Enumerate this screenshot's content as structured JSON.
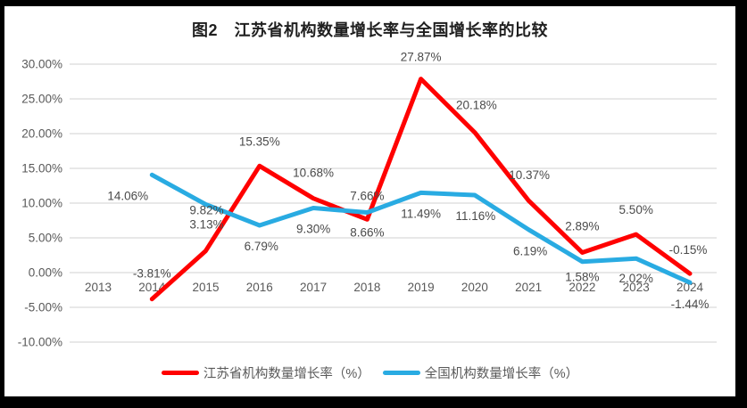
{
  "chart_data": {
    "type": "line",
    "title": "图2　江苏省机构数量增长率与全国增长率的比较",
    "categories": [
      "2013",
      "2014",
      "2015",
      "2016",
      "2017",
      "2018",
      "2019",
      "2020",
      "2021",
      "2022",
      "2023",
      "2024"
    ],
    "y_axis": {
      "min": -10,
      "max": 30,
      "step": 5,
      "tick_labels": [
        "30.00%",
        "25.00%",
        "20.00%",
        "15.00%",
        "10.00%",
        "5.00%",
        "0.00%",
        "-5.00%",
        "-10.00%"
      ]
    },
    "grid": "horizontal",
    "legend_position": "bottom",
    "series": [
      {
        "id": "jiangsu-line",
        "name": "江苏省机构数量增长率（%）",
        "color": "#FF0000",
        "start_category": "2014",
        "values": [
          -3.81,
          3.13,
          15.35,
          10.68,
          7.66,
          27.87,
          20.18,
          10.37,
          2.89,
          5.5,
          -0.15
        ],
        "data_labels": [
          "-3.81%",
          "3.13%",
          "15.35%",
          "10.68%",
          "7.66%",
          "27.87%",
          "20.18%",
          "10.37%",
          "2.89%",
          "5.50%",
          "-0.15%"
        ],
        "label_offsets": [
          [
            0,
            -24
          ],
          [
            1,
            -25
          ],
          [
            0,
            -23
          ],
          [
            0,
            -24
          ],
          [
            0,
            -22
          ],
          [
            0,
            -20
          ],
          [
            2,
            -26
          ],
          [
            1,
            -24
          ],
          [
            0,
            -25
          ],
          [
            0,
            -23
          ],
          [
            -2,
            -22
          ]
        ]
      },
      {
        "id": "national-line",
        "name": "全国机构数量增长率（%）",
        "color": "#29ABE2",
        "start_category": "2014",
        "values": [
          14.06,
          9.82,
          6.79,
          9.3,
          8.66,
          11.49,
          11.16,
          6.19,
          1.58,
          2.02,
          -1.44
        ],
        "data_labels": [
          "14.06%",
          "9.82%",
          "6.79%",
          "9.30%",
          "8.66%",
          "11.49%",
          "11.16%",
          "6.19%",
          "1.58%",
          "2.02%",
          "-1.44%"
        ],
        "label_offsets": [
          [
            -27,
            28
          ],
          [
            1,
            11
          ],
          [
            2,
            28
          ],
          [
            0,
            28
          ],
          [
            0,
            27
          ],
          [
            0,
            28
          ],
          [
            1,
            28
          ],
          [
            2,
            29
          ],
          [
            0,
            22
          ],
          [
            0,
            27
          ],
          [
            0,
            29
          ]
        ]
      }
    ]
  },
  "colors": {
    "grid": "#D9D9D9",
    "axis_text": "#595959",
    "title_text": "#1F1F1F",
    "frame": "#000000",
    "background": "#FFFFFF"
  }
}
